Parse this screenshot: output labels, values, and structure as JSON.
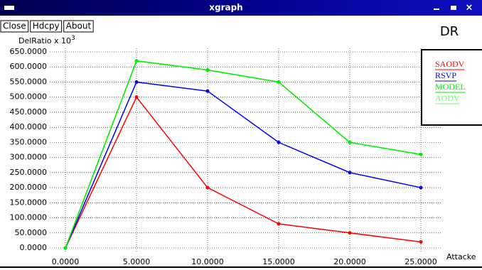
{
  "window_title": "xgraph",
  "buttons": [
    "Close",
    "Hdcpy",
    "About"
  ],
  "chart_data": {
    "type": "line",
    "title": "DR",
    "ylabel": "DelRatio x 10",
    "ylabel_exponent": "3",
    "xlabel": "Attacke",
    "x": [
      0,
      5,
      10,
      15,
      20,
      25
    ],
    "series": [
      {
        "name": "SAODV",
        "color": "#ff0000",
        "values": [
          0,
          500,
          200,
          80,
          50,
          20
        ]
      },
      {
        "name": "RSVP",
        "color": "#0000ff",
        "values": [
          0,
          550,
          520,
          350,
          250,
          200
        ]
      },
      {
        "name": "AODV",
        "color": "#66ff66",
        "values": [
          0,
          620,
          590,
          550,
          350,
          310
        ]
      },
      {
        "name": "MODEL",
        "color": "#00ee00",
        "values": [
          0,
          620,
          590,
          550,
          350,
          310
        ]
      }
    ],
    "legend_order": [
      "SAODV",
      "RSVP",
      "MODEL",
      "AODV"
    ],
    "xlim": [
      0,
      25
    ],
    "ylim": [
      0,
      650
    ],
    "xticks": [
      {
        "value": 0,
        "label": "0.0000"
      },
      {
        "value": 5,
        "label": "5.0000"
      },
      {
        "value": 10,
        "label": "10.0000"
      },
      {
        "value": 15,
        "label": "15.0000"
      },
      {
        "value": 20,
        "label": "20.0000"
      },
      {
        "value": 25,
        "label": "25.0000"
      }
    ],
    "yticks": [
      {
        "value": 0,
        "label": "0.0000"
      },
      {
        "value": 50,
        "label": "50.0000"
      },
      {
        "value": 100,
        "label": "100.0000"
      },
      {
        "value": 150,
        "label": "150.0000"
      },
      {
        "value": 200,
        "label": "200.0000"
      },
      {
        "value": 250,
        "label": "250.0000"
      },
      {
        "value": 300,
        "label": "300.0000"
      },
      {
        "value": 350,
        "label": "350.0000"
      },
      {
        "value": 400,
        "label": "400.0000"
      },
      {
        "value": 450,
        "label": "450.0000"
      },
      {
        "value": 500,
        "label": "500.0000"
      },
      {
        "value": 550,
        "label": "550.0000"
      },
      {
        "value": 600,
        "label": "600.0000"
      },
      {
        "value": 650,
        "label": "650.0000"
      }
    ],
    "grid": true
  }
}
